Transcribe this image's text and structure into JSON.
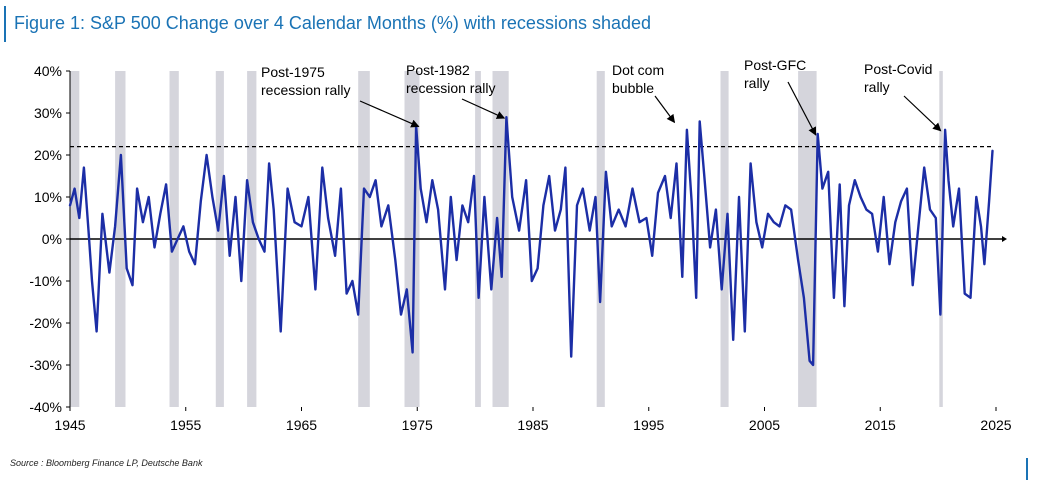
{
  "title": "Figure 1: S&P 500 Change over 4 Calendar Months (%) with recessions shaded",
  "source": "Source : Bloomberg Finance LP, Deutsche Bank",
  "colors": {
    "title": "#1a73b5",
    "series": "#1c2ea6",
    "recession_shade": "#d5d5dc",
    "axis": "#000000"
  },
  "chart_data": {
    "type": "line",
    "title": "Figure 1: S&P 500 Change over 4 Calendar Months (%) with recessions shaded",
    "xlabel": "",
    "ylabel": "",
    "xlim": [
      1945,
      2025
    ],
    "ylim": [
      -40,
      40
    ],
    "x_ticks": [
      1945,
      1955,
      1965,
      1975,
      1985,
      1995,
      2005,
      2015,
      2025
    ],
    "y_ticks": [
      40,
      30,
      20,
      10,
      0,
      -10,
      -20,
      -30,
      -40
    ],
    "y_tick_labels": [
      "40%",
      "30%",
      "20%",
      "10%",
      "0%",
      "-10%",
      "-20%",
      "-30%",
      "-40%"
    ],
    "grid": false,
    "threshold_line": {
      "y": 22,
      "style": "dashed"
    },
    "recessions": [
      [
        1945.0,
        1945.8
      ],
      [
        1948.9,
        1949.8
      ],
      [
        1953.6,
        1954.4
      ],
      [
        1957.6,
        1958.3
      ],
      [
        1960.3,
        1961.1
      ],
      [
        1969.9,
        1970.9
      ],
      [
        1973.9,
        1975.2
      ],
      [
        1980.0,
        1980.5
      ],
      [
        1981.5,
        1982.9
      ],
      [
        1990.5,
        1991.2
      ],
      [
        2001.2,
        2001.9
      ],
      [
        2007.9,
        2009.5
      ],
      [
        2020.1,
        2020.4
      ]
    ],
    "annotations": [
      {
        "lines": [
          "Post-1975",
          "recession rally"
        ],
        "x": 1975.3,
        "y": 27
      },
      {
        "lines": [
          "Post-1982",
          "recession rally"
        ],
        "x": 1982.7,
        "y": 29
      },
      {
        "lines": [
          "Dot com",
          "bubble"
        ],
        "x": 1997.4,
        "y": 28
      },
      {
        "lines": [
          "Post-GFC",
          "rally"
        ],
        "x": 2009.6,
        "y": 25
      },
      {
        "lines": [
          "Post-Covid",
          "rally"
        ],
        "x": 2020.4,
        "y": 26
      }
    ],
    "series": [
      {
        "x": [
          1945.0,
          1945.4,
          1945.8,
          1946.2,
          1946.6,
          1946.9,
          1947.3,
          1947.8,
          1948.4,
          1948.9,
          1949.4,
          1949.9,
          1950.4,
          1950.8,
          1951.3,
          1951.8,
          1952.3,
          1952.8,
          1953.3,
          1953.8,
          1954.3,
          1954.8,
          1955.3,
          1955.8,
          1956.3,
          1956.8,
          1957.3,
          1957.8,
          1958.3,
          1958.8,
          1959.3,
          1959.8,
          1960.3,
          1960.8,
          1961.3,
          1961.8,
          1962.2,
          1962.6,
          1963.2,
          1963.8,
          1964.4,
          1965.0,
          1965.6,
          1966.2,
          1966.8,
          1967.3,
          1967.9,
          1968.4,
          1968.9,
          1969.4,
          1969.9,
          1970.4,
          1970.9,
          1971.4,
          1971.9,
          1972.5,
          1973.1,
          1973.6,
          1974.1,
          1974.6,
          1974.9,
          1975.3,
          1975.8,
          1976.3,
          1976.8,
          1977.4,
          1977.9,
          1978.4,
          1978.9,
          1979.4,
          1979.9,
          1980.3,
          1980.8,
          1981.4,
          1981.9,
          1982.3,
          1982.7,
          1983.2,
          1983.8,
          1984.4,
          1984.9,
          1985.4,
          1985.9,
          1986.4,
          1986.9,
          1987.4,
          1987.8,
          1988.3,
          1988.8,
          1989.3,
          1989.9,
          1990.4,
          1990.8,
          1991.3,
          1991.8,
          1992.4,
          1993.0,
          1993.6,
          1994.2,
          1994.8,
          1995.3,
          1995.8,
          1996.4,
          1996.9,
          1997.4,
          1997.9,
          1998.3,
          1998.7,
          1999.1,
          1999.4,
          1999.8,
          2000.3,
          2000.8,
          2001.3,
          2001.8,
          2002.3,
          2002.8,
          2003.3,
          2003.8,
          2004.3,
          2004.8,
          2005.3,
          2005.8,
          2006.3,
          2006.8,
          2007.3,
          2007.9,
          2008.4,
          2008.9,
          2009.2,
          2009.6,
          2010.0,
          2010.5,
          2011.0,
          2011.5,
          2011.9,
          2012.3,
          2012.8,
          2013.3,
          2013.8,
          2014.3,
          2014.8,
          2015.3,
          2015.8,
          2016.3,
          2016.8,
          2017.3,
          2017.8,
          2018.3,
          2018.8,
          2019.3,
          2019.8,
          2020.2,
          2020.6,
          2020.9,
          2021.3,
          2021.8,
          2022.3,
          2022.8,
          2023.3,
          2023.7,
          2024.0,
          2024.4,
          2024.7
        ],
        "y": [
          8,
          12,
          5,
          17,
          2,
          -10,
          -22,
          6,
          -8,
          3,
          20,
          -7,
          -11,
          12,
          4,
          10,
          -2,
          6,
          13,
          -3,
          0,
          3,
          -3,
          -6,
          9,
          20,
          10,
          2,
          15,
          -4,
          10,
          -10,
          14,
          4,
          0,
          -3,
          18,
          7,
          -22,
          12,
          4,
          3,
          10,
          -12,
          17,
          5,
          -4,
          12,
          -13,
          -10,
          -18,
          12,
          10,
          14,
          3,
          8,
          -5,
          -18,
          -12,
          -27,
          27,
          12,
          4,
          14,
          7,
          -12,
          10,
          -5,
          8,
          4,
          15,
          -14,
          10,
          -12,
          5,
          -9,
          29,
          10,
          2,
          14,
          -10,
          -7,
          8,
          15,
          2,
          7,
          17,
          -28,
          8,
          12,
          2,
          10,
          -15,
          16,
          3,
          7,
          3,
          12,
          4,
          5,
          -4,
          11,
          15,
          5,
          18,
          -9,
          26,
          9,
          -14,
          28,
          15,
          -2,
          7,
          -12,
          6,
          -24,
          10,
          -22,
          18,
          4,
          -2,
          6,
          4,
          3,
          8,
          7,
          -5,
          -14,
          -29,
          -30,
          25,
          12,
          16,
          -14,
          13,
          -16,
          8,
          14,
          10,
          7,
          6,
          -3,
          10,
          -6,
          4,
          9,
          12,
          -11,
          3,
          17,
          7,
          5,
          -18,
          26,
          14,
          3,
          12,
          -13,
          -14,
          10,
          3,
          -6,
          9,
          21
        ]
      }
    ]
  }
}
